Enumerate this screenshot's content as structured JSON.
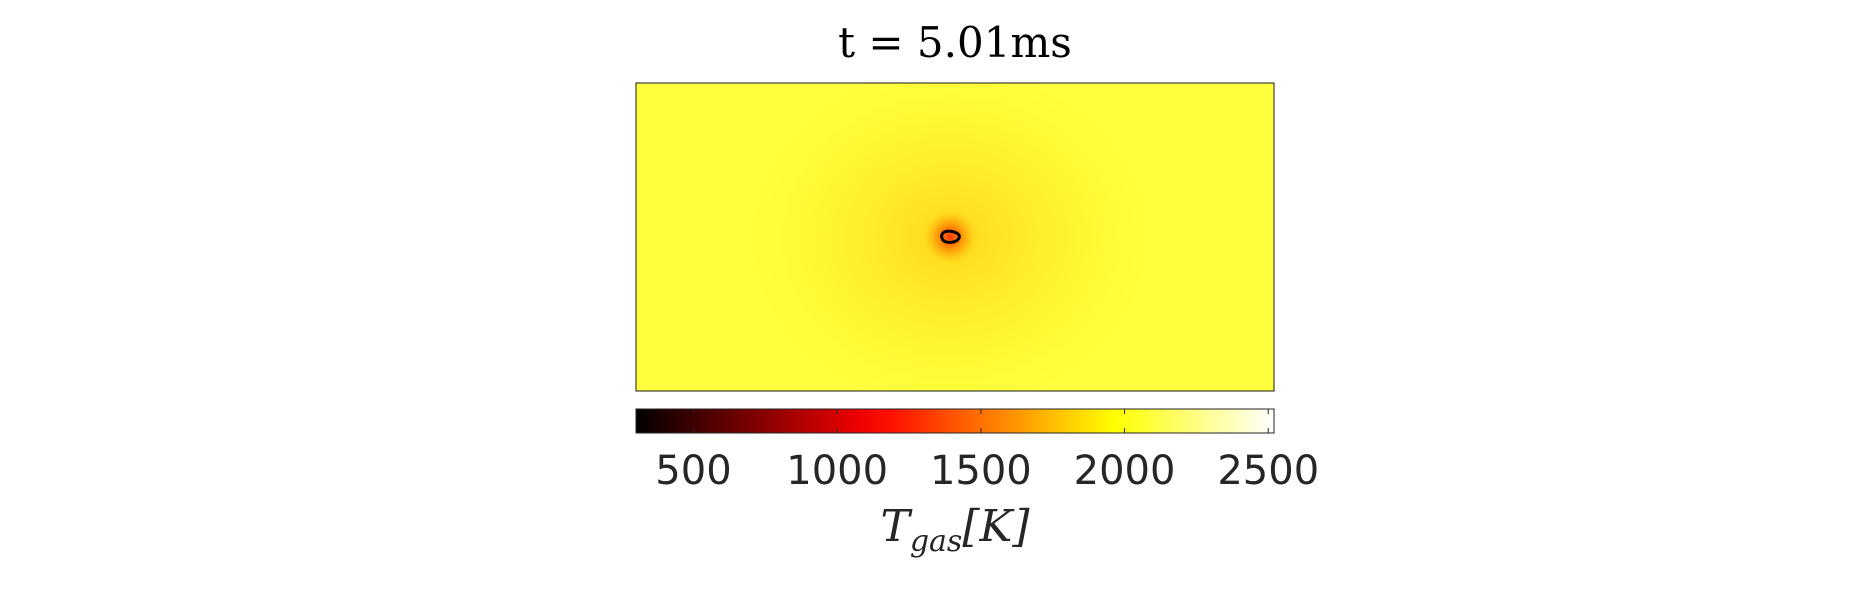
{
  "chart_data": {
    "type": "heatmap",
    "title": "t = 5.01ms",
    "colorbar": {
      "label_symbol": "T",
      "label_subscript": "gas",
      "label_unit": "[K]",
      "colormap": "hot",
      "range": [
        300,
        2520
      ],
      "ticks": [
        500,
        1000,
        1500,
        2000,
        2500
      ],
      "tick_labels": [
        "500",
        "1000",
        "1500",
        "2000",
        "2500"
      ],
      "orientation": "horizontal",
      "position": "bottom"
    },
    "field": {
      "background_temperature": 2100,
      "hot_spot_center_temperature": 1550,
      "hot_spot_core_temperature": 1300,
      "cool_halo_temperature": 2000
    },
    "contour": {
      "color": "#000000",
      "shape": "small closed loop at center"
    },
    "axes_visible": false,
    "grid": false
  }
}
